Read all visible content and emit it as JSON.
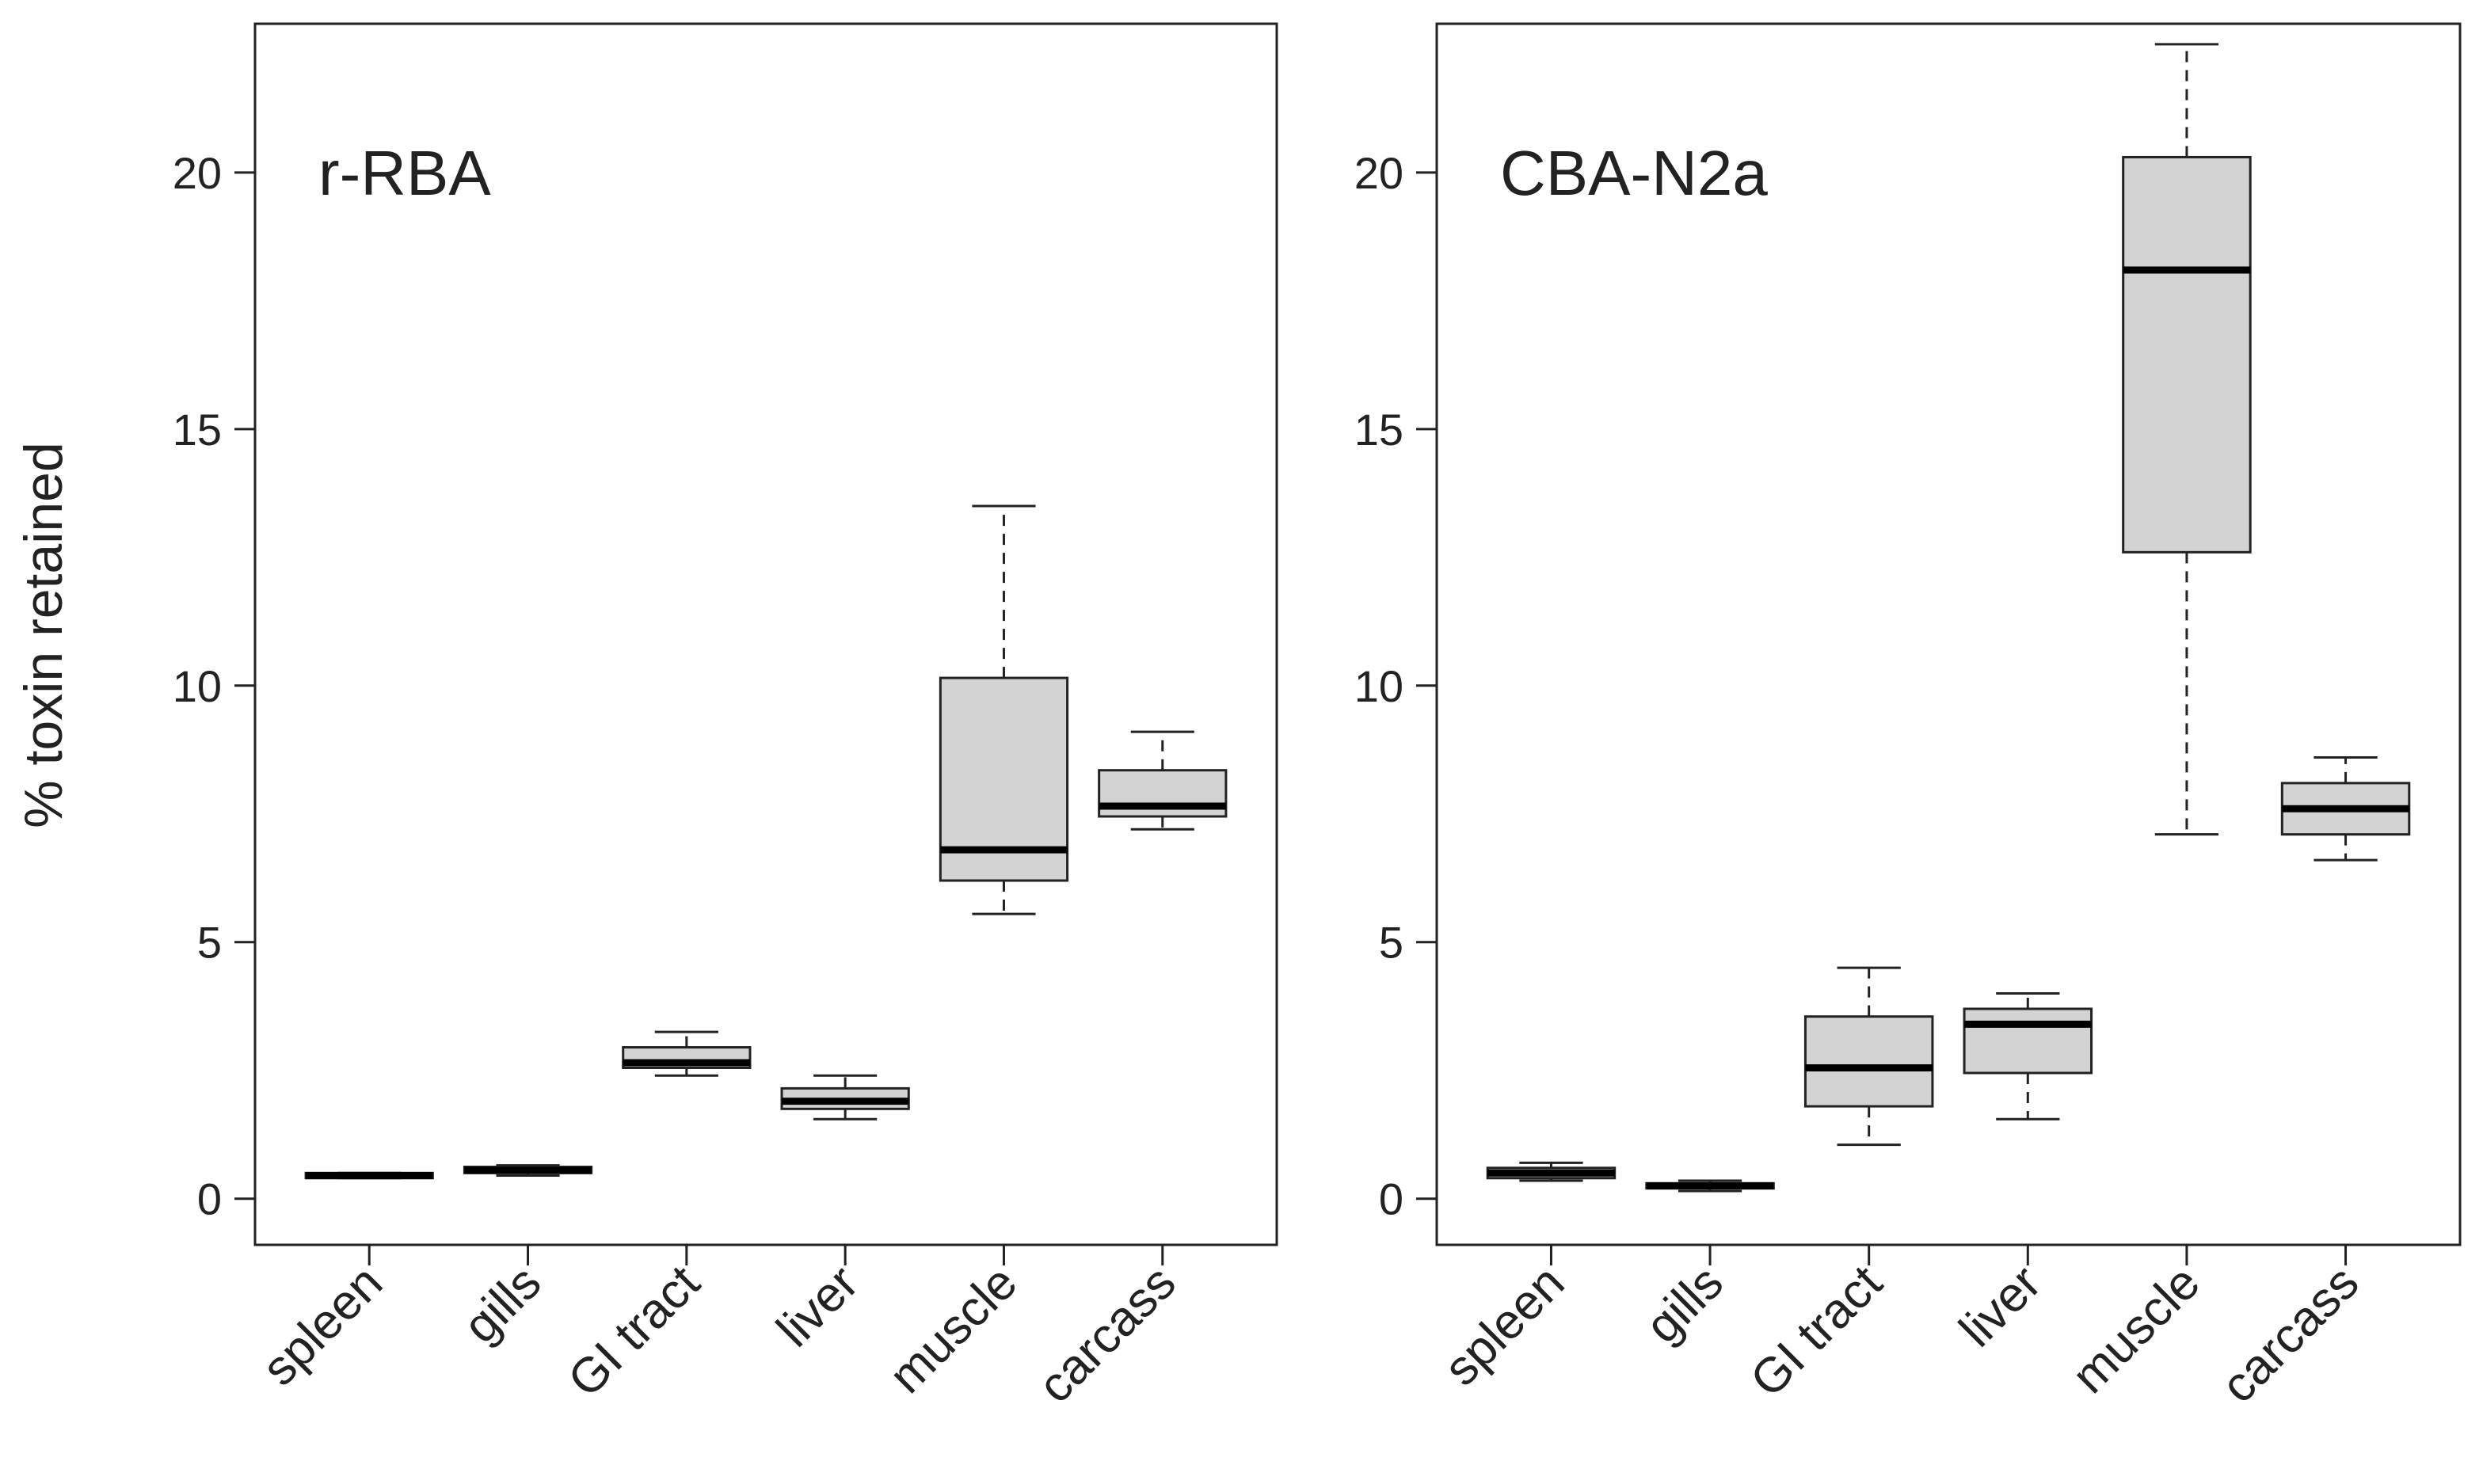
{
  "chart_data": [
    {
      "type": "boxplot",
      "panel_label": "r-RBA",
      "ylabel": "% toxin retained",
      "ylim": [
        -0.9,
        22.9
      ],
      "yticks": [
        0,
        5,
        10,
        15,
        20
      ],
      "categories": [
        "spleen",
        "gills",
        "GI tract",
        "liver",
        "muscle",
        "carcass"
      ],
      "boxes": [
        {
          "category": "spleen",
          "min": 0.4,
          "q1": 0.4,
          "median": 0.45,
          "q3": 0.5,
          "max": 0.5
        },
        {
          "category": "gills",
          "min": 0.45,
          "q1": 0.5,
          "median": 0.55,
          "q3": 0.62,
          "max": 0.65
        },
        {
          "category": "GI tract",
          "min": 2.4,
          "q1": 2.55,
          "median": 2.65,
          "q3": 2.95,
          "max": 3.25
        },
        {
          "category": "liver",
          "min": 1.55,
          "q1": 1.75,
          "median": 1.9,
          "q3": 2.15,
          "max": 2.4
        },
        {
          "category": "muscle",
          "min": 5.55,
          "q1": 6.2,
          "median": 6.8,
          "q3": 10.15,
          "max": 13.5
        },
        {
          "category": "carcass",
          "min": 7.2,
          "q1": 7.45,
          "median": 7.65,
          "q3": 8.35,
          "max": 9.1
        }
      ]
    },
    {
      "type": "boxplot",
      "panel_label": "CBA-N2a",
      "ylabel": "",
      "ylim": [
        -0.9,
        22.9
      ],
      "yticks": [
        0,
        5,
        10,
        15,
        20
      ],
      "categories": [
        "spleen",
        "gills",
        "GI tract",
        "liver",
        "muscle",
        "carcass"
      ],
      "boxes": [
        {
          "category": "spleen",
          "min": 0.35,
          "q1": 0.4,
          "median": 0.5,
          "q3": 0.6,
          "max": 0.7
        },
        {
          "category": "gills",
          "min": 0.15,
          "q1": 0.2,
          "median": 0.25,
          "q3": 0.3,
          "max": 0.35
        },
        {
          "category": "GI tract",
          "min": 1.05,
          "q1": 1.8,
          "median": 2.55,
          "q3": 3.55,
          "max": 4.5
        },
        {
          "category": "liver",
          "min": 1.55,
          "q1": 2.45,
          "median": 3.4,
          "q3": 3.7,
          "max": 4.0
        },
        {
          "category": "muscle",
          "min": 7.1,
          "q1": 12.6,
          "median": 18.1,
          "q3": 20.3,
          "max": 22.5
        },
        {
          "category": "carcass",
          "min": 6.6,
          "q1": 7.1,
          "median": 7.6,
          "q3": 8.1,
          "max": 8.6
        }
      ]
    }
  ],
  "colors": {
    "box_fill": "#d3d3d3",
    "stroke": "#222222",
    "median": "#000000",
    "background": "#ffffff"
  }
}
